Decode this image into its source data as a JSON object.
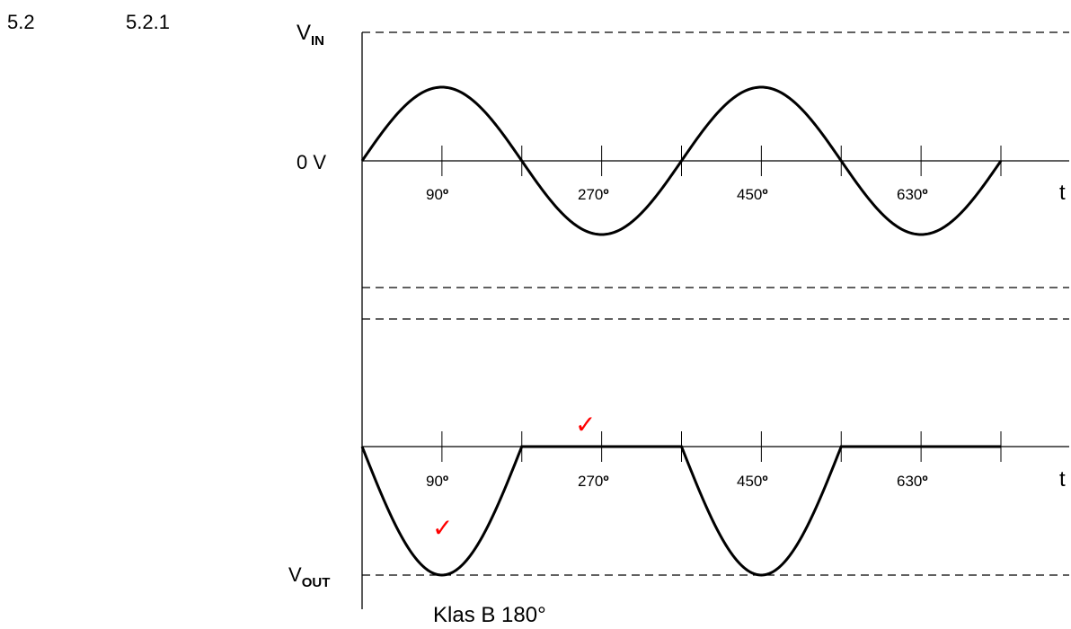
{
  "section": {
    "number": "5.2",
    "subnumber": "5.2.1"
  },
  "labels": {
    "vin": {
      "main": "V",
      "sub": "IN"
    },
    "vout": {
      "main": "V",
      "sub": "OUT"
    },
    "zero": "0 V",
    "time": "t",
    "caption": "Klas B 180°"
  },
  "ticks": [
    {
      "num": "90",
      "deg": "º"
    },
    {
      "num": "270",
      "deg": "º"
    },
    {
      "num": "450",
      "deg": "º"
    },
    {
      "num": "630",
      "deg": "º"
    }
  ],
  "input_wave": {
    "type": "sine",
    "cycles": 2,
    "phase_start_deg": 0,
    "phase_end_deg": 720
  },
  "output_wave": {
    "type": "half-wave",
    "conducts_during": "negative half-cycles",
    "cycles": 2
  },
  "check_marks": {
    "symbol": "✓",
    "count": 2,
    "color": "#ff0000"
  },
  "colors": {
    "trace": "#000000",
    "check": "#ff0000"
  }
}
